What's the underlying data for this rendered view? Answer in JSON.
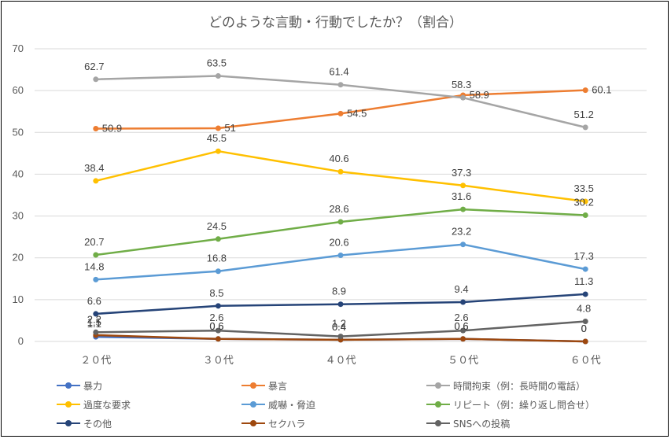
{
  "chart_data": {
    "type": "line",
    "title": "どのような言動・行動でしたか？（割合）",
    "categories": [
      "２０代",
      "３０代",
      "４０代",
      "５０代",
      "６０代"
    ],
    "ylim": [
      0,
      70
    ],
    "yticks": [
      0,
      10,
      20,
      30,
      40,
      50,
      60,
      70
    ],
    "grid": true,
    "legend_position": "bottom",
    "series": [
      {
        "name": "暴力",
        "color": "#4472C4",
        "values": [
          1.1,
          0.6,
          0.4,
          0.6,
          0
        ],
        "labels": [
          "1.1",
          "0.6",
          "0.4",
          "0.6",
          "0"
        ]
      },
      {
        "name": "暴言",
        "color": "#ED7D31",
        "values": [
          50.9,
          51,
          54.5,
          58.9,
          60.1
        ],
        "labels": [
          "50.9",
          "51",
          "54.5",
          "58.9",
          "60.1"
        ]
      },
      {
        "name": "時間拘束（例：長時間の電話）",
        "color": "#A5A5A5",
        "values": [
          62.7,
          63.5,
          61.4,
          58.3,
          51.2
        ],
        "labels": [
          "62.7",
          "63.5",
          "61.4",
          "58.3",
          "51.2"
        ]
      },
      {
        "name": "過度な要求",
        "color": "#FFC000",
        "values": [
          38.4,
          45.5,
          40.6,
          37.3,
          33.5
        ],
        "labels": [
          "38.4",
          "45.5",
          "40.6",
          "37.3",
          "33.5"
        ]
      },
      {
        "name": "威嚇・脅迫",
        "color": "#5B9BD5",
        "values": [
          14.8,
          16.8,
          20.6,
          23.2,
          17.3
        ],
        "labels": [
          "14.8",
          "16.8",
          "20.6",
          "23.2",
          "17.3"
        ]
      },
      {
        "name": "リピート（例：繰り返し問合せ）",
        "color": "#70AD47",
        "values": [
          20.7,
          24.5,
          28.6,
          31.6,
          30.2
        ],
        "labels": [
          "20.7",
          "24.5",
          "28.6",
          "31.6",
          "30.2"
        ]
      },
      {
        "name": "その他",
        "color": "#264478",
        "values": [
          6.6,
          8.5,
          8.9,
          9.4,
          11.3
        ],
        "labels": [
          "6.6",
          "8.5",
          "8.9",
          "9.4",
          "11.3"
        ]
      },
      {
        "name": "セクハラ",
        "color": "#9E480E",
        "values": [
          1.5,
          0.6,
          0.4,
          0.6,
          0
        ],
        "labels": [
          "1.5",
          "0.6",
          "0.4",
          "0.6",
          "0"
        ]
      },
      {
        "name": "SNSへの投稿",
        "color": "#636363",
        "values": [
          2.2,
          2.6,
          1.2,
          2.6,
          4.8
        ],
        "labels": [
          "2.2",
          "2.6",
          "1.2",
          "2.6",
          "4.8"
        ]
      }
    ]
  }
}
